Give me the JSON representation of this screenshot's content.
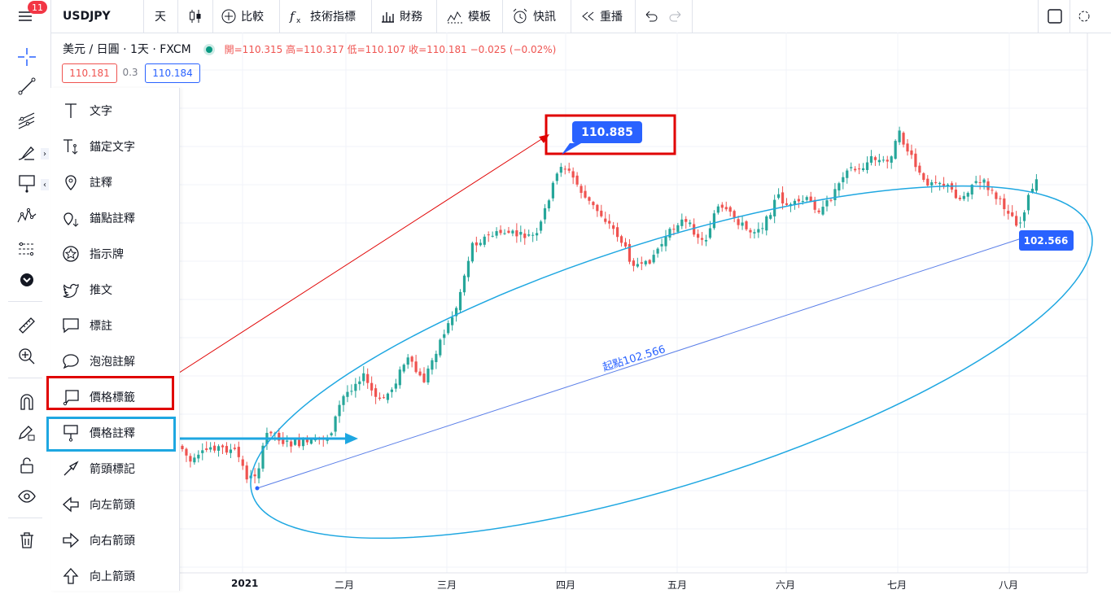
{
  "topbar": {
    "notification_count": "11",
    "symbol": "USDJPY",
    "interval": "天",
    "compare": "比較",
    "indicators": "技術指標",
    "financials": "財務",
    "templates": "模板",
    "alerts": "快訊",
    "replay": "重播"
  },
  "legend": {
    "title": "美元 / 日圓 · 1天 · FXCM",
    "ohlc": "開=110.315 高=110.317 低=110.107 收=110.181 −0.025 (−0.02%)",
    "bid": "110.181",
    "spread": "0.3",
    "ask": "110.184"
  },
  "menu": {
    "items": [
      {
        "label": "文字",
        "icon": "text-icon"
      },
      {
        "label": "錨定文字",
        "icon": "anchored-text-icon"
      },
      {
        "label": "註釋",
        "icon": "note-icon"
      },
      {
        "label": "錨點註釋",
        "icon": "anchored-note-icon"
      },
      {
        "label": "指示牌",
        "icon": "signpost-icon"
      },
      {
        "label": "推文",
        "icon": "tweet-icon"
      },
      {
        "label": "標註",
        "icon": "callout-icon"
      },
      {
        "label": "泡泡註解",
        "icon": "comment-bubble-icon"
      },
      {
        "label": "價格標籤",
        "icon": "price-label-icon"
      },
      {
        "label": "價格註釋",
        "icon": "price-note-icon"
      },
      {
        "label": "箭頭標記",
        "icon": "arrow-marker-icon"
      },
      {
        "label": "向左箭頭",
        "icon": "arrow-left-icon"
      },
      {
        "label": "向右箭頭",
        "icon": "arrow-right-icon"
      },
      {
        "label": "向上箭頭",
        "icon": "arrow-up-icon"
      }
    ]
  },
  "chart": {
    "price_label": "110.885",
    "start_label": "102.566",
    "line_text": "起點102.566",
    "x_axis": [
      "2021",
      "二月",
      "三月",
      "四月",
      "五月",
      "六月",
      "七月",
      "八月"
    ],
    "up_color": "#26a69a",
    "down_color": "#ef5350",
    "annotation_red": "#e00000",
    "annotation_blue": "#1ea7e1",
    "label_blue": "#2962ff"
  }
}
